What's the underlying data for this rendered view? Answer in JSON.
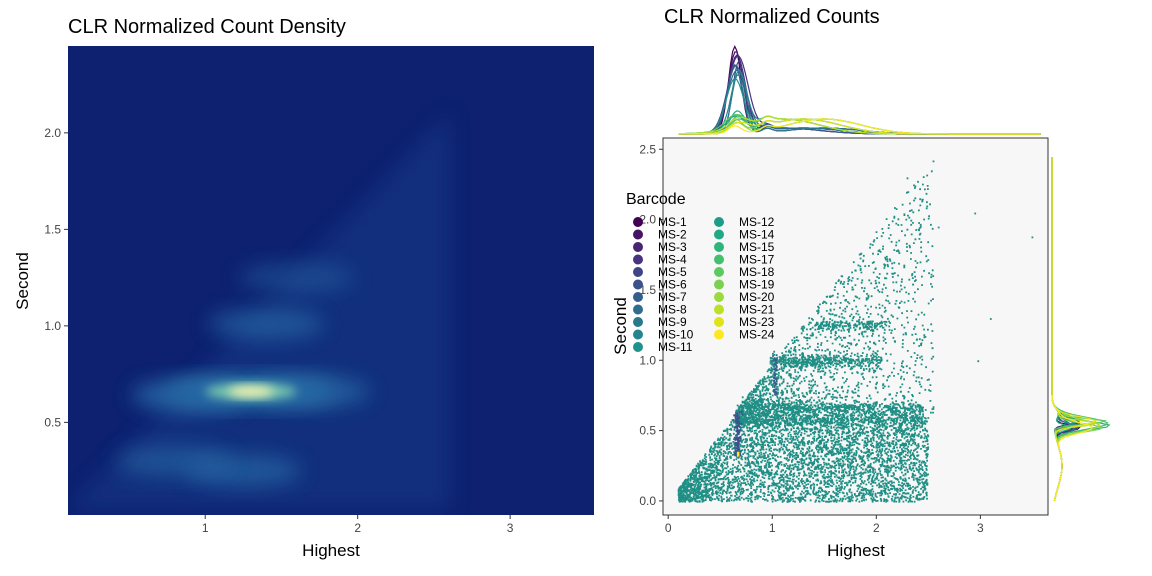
{
  "chart_data": [
    {
      "type": "heatmap",
      "title": "CLR Normalized Count Density",
      "xlabel": "Highest",
      "ylabel": "Second",
      "xlim": [
        0.1,
        3.55
      ],
      "ylim": [
        0.02,
        2.45
      ],
      "x_ticks": [
        1,
        2,
        3
      ],
      "x_tick_labels": [
        "1",
        "2",
        "3"
      ],
      "y_ticks": [
        0.5,
        1.0,
        1.5,
        2.0
      ],
      "y_tick_labels": [
        "0.5",
        "1.0",
        "1.5",
        "2.0"
      ],
      "grid": false,
      "colors": {
        "background": "#0d2170",
        "low": "#103a84",
        "mid": "#2c7bb6",
        "high": "#fff3b0"
      },
      "density_peaks": [
        {
          "x": 1.3,
          "y": 0.66,
          "density": 1.0
        },
        {
          "x": 0.9,
          "y": 0.64,
          "density": 0.6
        },
        {
          "x": 1.7,
          "y": 0.66,
          "density": 0.45
        },
        {
          "x": 1.25,
          "y": 0.25,
          "density": 0.4
        },
        {
          "x": 0.8,
          "y": 0.3,
          "density": 0.3
        },
        {
          "x": 1.4,
          "y": 1.01,
          "density": 0.35
        },
        {
          "x": 1.6,
          "y": 1.25,
          "density": 0.12
        }
      ]
    },
    {
      "type": "scatter",
      "title": "CLR Normalized Counts",
      "xlabel": "Highest",
      "ylabel": "Second",
      "xlim": [
        -0.05,
        3.65
      ],
      "ylim": [
        -0.1,
        2.58
      ],
      "x_ticks": [
        0,
        1,
        2,
        3
      ],
      "x_tick_labels": [
        "0",
        "1",
        "2",
        "3"
      ],
      "y_ticks": [
        0.0,
        0.5,
        1.0,
        1.5,
        2.0,
        2.5
      ],
      "y_tick_labels": [
        "0.0",
        "0.5",
        "1.0",
        "1.5",
        "2.0",
        "2.5"
      ],
      "grid": false,
      "legend": {
        "title": "Barcode",
        "placement": "left",
        "items": [
          "MS-1",
          "MS-2",
          "MS-3",
          "MS-4",
          "MS-5",
          "MS-6",
          "MS-7",
          "MS-8",
          "MS-9",
          "MS-10",
          "MS-11",
          "MS-12",
          "MS-14",
          "MS-15",
          "MS-17",
          "MS-18",
          "MS-19",
          "MS-20",
          "MS-21",
          "MS-23",
          "MS-24"
        ],
        "colors": [
          "#440154",
          "#471365",
          "#482475",
          "#463480",
          "#414487",
          "#3b528b",
          "#355f8d",
          "#2f6c8e",
          "#2a788e",
          "#25848e",
          "#21918c",
          "#1e9c89",
          "#22a884",
          "#2fb47c",
          "#44bf70",
          "#5ec962",
          "#7ad151",
          "#9bd93c",
          "#bddf26",
          "#dfe318",
          "#fde725"
        ]
      },
      "dominant_series_color": "#1f8f85",
      "point_clusters": [
        {
          "x_range": [
            0.1,
            2.5
          ],
          "y_band": [
            0.0,
            0.6
          ],
          "note": ""
        },
        {
          "x_range": [
            0.65,
            2.45
          ],
          "y_value": 0.62
        },
        {
          "x_range": [
            1.0,
            2.05
          ],
          "y_value": 1.0
        },
        {
          "x_range": [
            1.4,
            2.1
          ],
          "y_value": 1.25
        }
      ],
      "marginal_densities": true
    }
  ]
}
